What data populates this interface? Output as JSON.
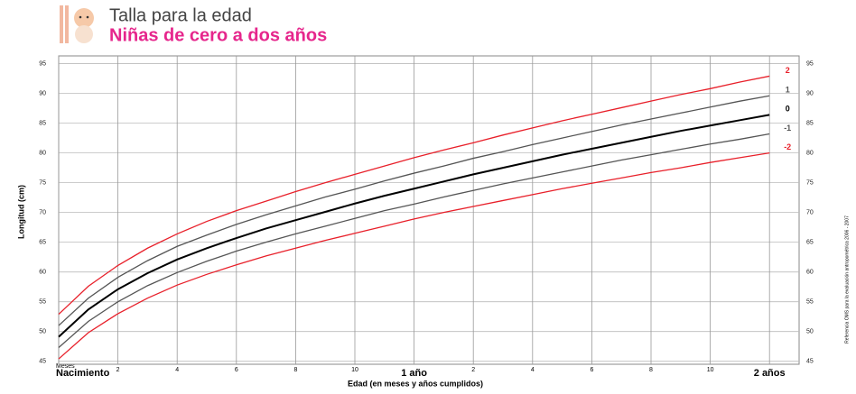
{
  "chart_data": {
    "type": "line",
    "title": "Talla para la edad",
    "subtitle": "Niñas de cero a dos años",
    "ylabel": "Longitud (cm)",
    "xlabel": "Edad (en meses y años cumplidos)",
    "x_unit_label": "Meses",
    "side_note": "Referencia OMS para la evaluación antropométrica 2006 - 2007",
    "x": [
      0,
      1,
      2,
      3,
      4,
      5,
      6,
      7,
      8,
      9,
      10,
      11,
      12,
      13,
      14,
      15,
      16,
      17,
      18,
      19,
      20,
      21,
      22,
      23,
      24
    ],
    "xlim": [
      0,
      25
    ],
    "xticks": [
      {
        "value": 0,
        "label": "Nacimiento"
      },
      2,
      4,
      6,
      8,
      10,
      {
        "value": 12,
        "label": "1 año"
      },
      {
        "value": 14,
        "label": "2"
      },
      {
        "value": 16,
        "label": "4"
      },
      {
        "value": 18,
        "label": "6"
      },
      {
        "value": 20,
        "label": "8"
      },
      {
        "value": 22,
        "label": "10"
      },
      {
        "value": 24,
        "label": "2 años"
      }
    ],
    "ylim": [
      44.5,
      96.3
    ],
    "yticks": [
      45,
      50,
      55,
      60,
      65,
      70,
      75,
      80,
      85,
      90,
      95
    ],
    "grid": true,
    "series": [
      {
        "name": "2",
        "color": "#e8202a",
        "values": [
          52.9,
          57.6,
          61.1,
          64.0,
          66.4,
          68.5,
          70.3,
          71.9,
          73.5,
          75.0,
          76.4,
          77.8,
          79.2,
          80.5,
          81.7,
          83.0,
          84.2,
          85.4,
          86.5,
          87.6,
          88.7,
          89.8,
          90.8,
          91.9,
          92.9
        ]
      },
      {
        "name": "1",
        "color": "#555555",
        "values": [
          51.0,
          55.6,
          59.1,
          61.9,
          64.3,
          66.2,
          68.0,
          69.6,
          71.1,
          72.6,
          73.9,
          75.3,
          76.6,
          77.8,
          79.1,
          80.2,
          81.4,
          82.5,
          83.6,
          84.7,
          85.7,
          86.7,
          87.7,
          88.7,
          89.6
        ]
      },
      {
        "name": "0",
        "color": "#000000",
        "values": [
          49.1,
          53.7,
          57.1,
          59.8,
          62.1,
          64.0,
          65.7,
          67.3,
          68.7,
          70.1,
          71.5,
          72.8,
          74.0,
          75.2,
          76.4,
          77.5,
          78.6,
          79.7,
          80.7,
          81.7,
          82.7,
          83.7,
          84.6,
          85.5,
          86.4
        ]
      },
      {
        "name": "-1",
        "color": "#555555",
        "values": [
          47.3,
          51.7,
          55.0,
          57.7,
          59.9,
          61.8,
          63.5,
          65.0,
          66.4,
          67.7,
          69.0,
          70.3,
          71.4,
          72.6,
          73.7,
          74.8,
          75.8,
          76.8,
          77.8,
          78.8,
          79.7,
          80.6,
          81.5,
          82.3,
          83.2
        ]
      },
      {
        "name": "-2",
        "color": "#e8202a",
        "values": [
          45.4,
          49.8,
          53.0,
          55.6,
          57.8,
          59.6,
          61.2,
          62.7,
          64.0,
          65.3,
          66.5,
          67.7,
          68.9,
          70.0,
          71.0,
          72.0,
          73.0,
          74.0,
          74.9,
          75.8,
          76.7,
          77.5,
          78.4,
          79.2,
          80.0
        ]
      }
    ]
  }
}
